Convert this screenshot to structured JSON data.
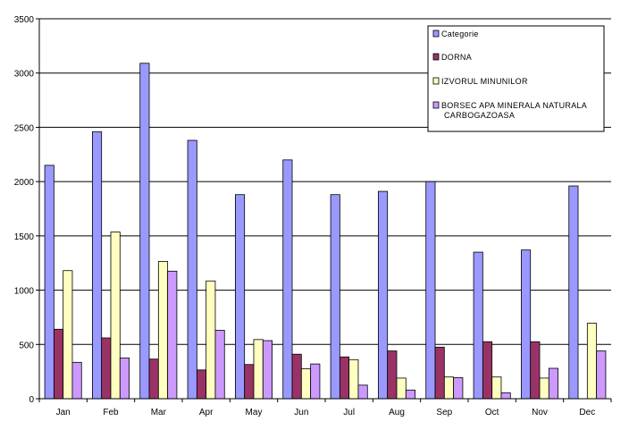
{
  "chart_data": {
    "type": "bar",
    "categories": [
      "Jan",
      "Feb",
      "Mar",
      "Apr",
      "May",
      "Jun",
      "Jul",
      "Aug",
      "Sep",
      "Oct",
      "Nov",
      "Dec"
    ],
    "series": [
      {
        "name": "Categorie",
        "color": "#9999ff",
        "values": [
          2150,
          2460,
          3090,
          2380,
          1880,
          2200,
          1880,
          1910,
          2000,
          1350,
          1370,
          1960
        ]
      },
      {
        "name": "DORNA",
        "color": "#993366",
        "values": [
          640,
          560,
          365,
          265,
          315,
          410,
          385,
          440,
          475,
          525,
          525,
          0
        ]
      },
      {
        "name": "IZVORUL MINUNILOR",
        "color": "#ffffc0",
        "values": [
          1180,
          1535,
          1265,
          1085,
          545,
          275,
          360,
          190,
          200,
          200,
          190,
          695
        ]
      },
      {
        "name": "BORSEC APA MINERALA NATURALA CARBOGAZOASA",
        "color": "#cc99ff",
        "values": [
          335,
          375,
          1175,
          630,
          535,
          320,
          125,
          80,
          195,
          55,
          280,
          440
        ]
      }
    ],
    "ylim": [
      0,
      3500
    ],
    "yticks": [
      "0",
      "500",
      "1000",
      "1500",
      "2000",
      "2500",
      "3000",
      "3500"
    ],
    "grid": true,
    "legend_position": "top-right"
  }
}
